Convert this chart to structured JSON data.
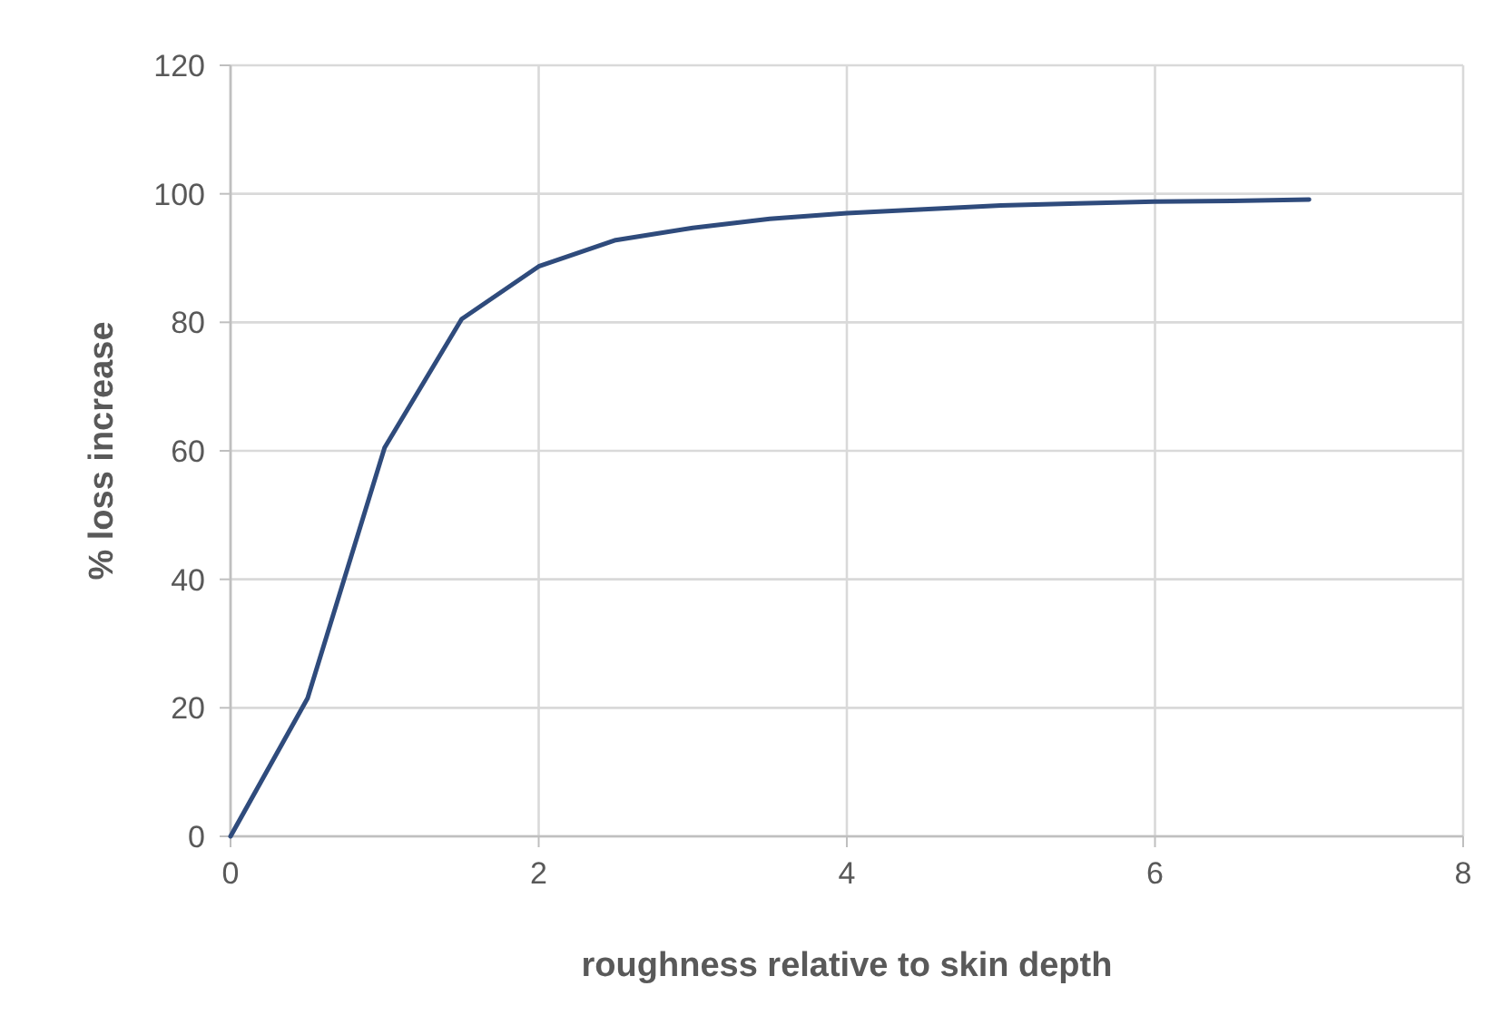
{
  "chart_data": {
    "type": "line",
    "xlabel": "roughness relative to skin depth",
    "ylabel": "% loss increase",
    "x": [
      0,
      0.5,
      1,
      1.5,
      2,
      2.5,
      3,
      3.5,
      4,
      4.5,
      5,
      5.5,
      6,
      6.5,
      7
    ],
    "series": [
      {
        "color": "#2f4b7c",
        "values": [
          0,
          21.5,
          60.5,
          80.5,
          88.7,
          92.8,
          94.7,
          96.1,
          97,
          97.6,
          98.2,
          98.5,
          98.8,
          98.9,
          99.1
        ]
      }
    ],
    "xlim": [
      0,
      8
    ],
    "xticks": [
      0,
      2,
      4,
      6,
      8
    ],
    "ylim": [
      0,
      120
    ],
    "yticks": [
      0,
      20,
      40,
      60,
      80,
      100,
      120
    ],
    "grid": true,
    "marker": "none",
    "line_style": "solid"
  }
}
